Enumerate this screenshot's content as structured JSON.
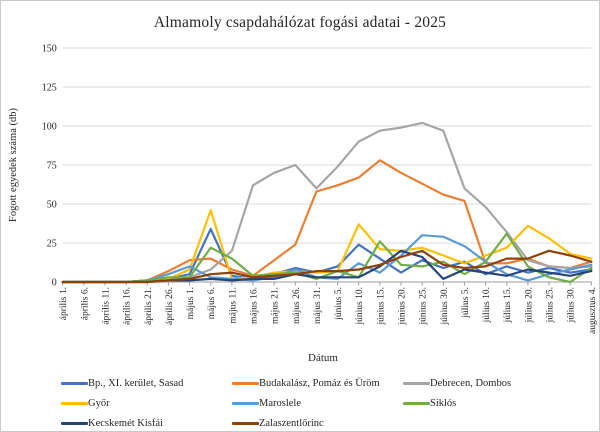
{
  "title": "Almamoly csapdahálózat fogási adatai - 2025",
  "chart_data": {
    "type": "line",
    "title": "Almamoly csapdahálózat fogási adatai - 2025",
    "xlabel": "Dátum",
    "ylabel": "Fogott egyedek száma (db)",
    "ylim": [
      0,
      150
    ],
    "yticks": [
      0,
      25,
      50,
      75,
      100,
      125,
      150
    ],
    "grid": true,
    "legend_position": "bottom",
    "gridline_color": "#d9d9d9",
    "axis_color": "#9b9b9b",
    "categories": [
      "április 1.",
      "április 6.",
      "április 11.",
      "április 16.",
      "április 21.",
      "április 26.",
      "május 1.",
      "május 6.",
      "május 11.",
      "május 16.",
      "május 21.",
      "május 26.",
      "május 31.",
      "június 5.",
      "június 10.",
      "június 15.",
      "június 20.",
      "június 25.",
      "június 30.",
      "július 5.",
      "július 10.",
      "július 15.",
      "július 20.",
      "július 25.",
      "július 30.",
      "augusztus 4."
    ],
    "series": [
      {
        "name": "Bp., XI. kerület, Sasad",
        "color": "#4472C4",
        "values": [
          0,
          0,
          0,
          0,
          1,
          2,
          5,
          34,
          4,
          2,
          5,
          9,
          6,
          10,
          24,
          15,
          6,
          14,
          9,
          13,
          5,
          10,
          6,
          9,
          6,
          8
        ]
      },
      {
        "name": "Budakalász, Pomáz és Üröm",
        "color": "#ED7D31",
        "values": [
          0,
          0,
          0,
          0,
          1,
          7,
          14,
          15,
          8,
          4,
          14,
          24,
          58,
          62,
          67,
          78,
          70,
          63,
          56,
          52,
          12,
          12,
          15,
          10,
          9,
          13
        ]
      },
      {
        "name": "Debrecen, Dombos",
        "color": "#A5A5A5",
        "values": [
          0,
          0,
          0,
          0,
          0,
          1,
          3,
          8,
          20,
          62,
          70,
          75,
          60,
          74,
          90,
          97,
          99,
          102,
          97,
          60,
          48,
          32,
          14,
          10,
          9,
          10
        ]
      },
      {
        "name": "Győr",
        "color": "#FFC000",
        "values": [
          0,
          0,
          0,
          0,
          1,
          2,
          8,
          46,
          2,
          3,
          6,
          7,
          6,
          7,
          37,
          21,
          20,
          22,
          17,
          12,
          17,
          22,
          36,
          28,
          18,
          15
        ]
      },
      {
        "name": "Maroslele",
        "color": "#5B9BD5",
        "values": [
          0,
          0,
          0,
          0,
          1,
          5,
          10,
          3,
          2,
          1,
          3,
          8,
          3,
          2,
          12,
          6,
          17,
          30,
          29,
          23,
          13,
          5,
          1,
          5,
          8,
          11
        ]
      },
      {
        "name": "Siklós",
        "color": "#70AD47",
        "values": [
          0,
          0,
          0,
          0,
          1,
          3,
          3,
          22,
          15,
          4,
          5,
          6,
          2,
          7,
          3,
          26,
          11,
          10,
          13,
          5,
          13,
          31,
          10,
          3,
          0,
          9
        ]
      },
      {
        "name": "Kecskemét Kisfái",
        "color": "#264478",
        "values": [
          0,
          0,
          0,
          0,
          0,
          1,
          1,
          2,
          1,
          2,
          2,
          5,
          3,
          3,
          3,
          10,
          20,
          16,
          2,
          8,
          6,
          4,
          8,
          6,
          4,
          7
        ]
      },
      {
        "name": "Zalaszentlőrinc",
        "color": "#8F4108",
        "values": [
          0,
          0,
          0,
          0,
          0,
          1,
          2,
          5,
          6,
          3,
          4,
          5,
          7,
          7,
          8,
          11,
          16,
          20,
          11,
          9,
          10,
          15,
          15,
          20,
          17,
          13
        ]
      }
    ]
  }
}
